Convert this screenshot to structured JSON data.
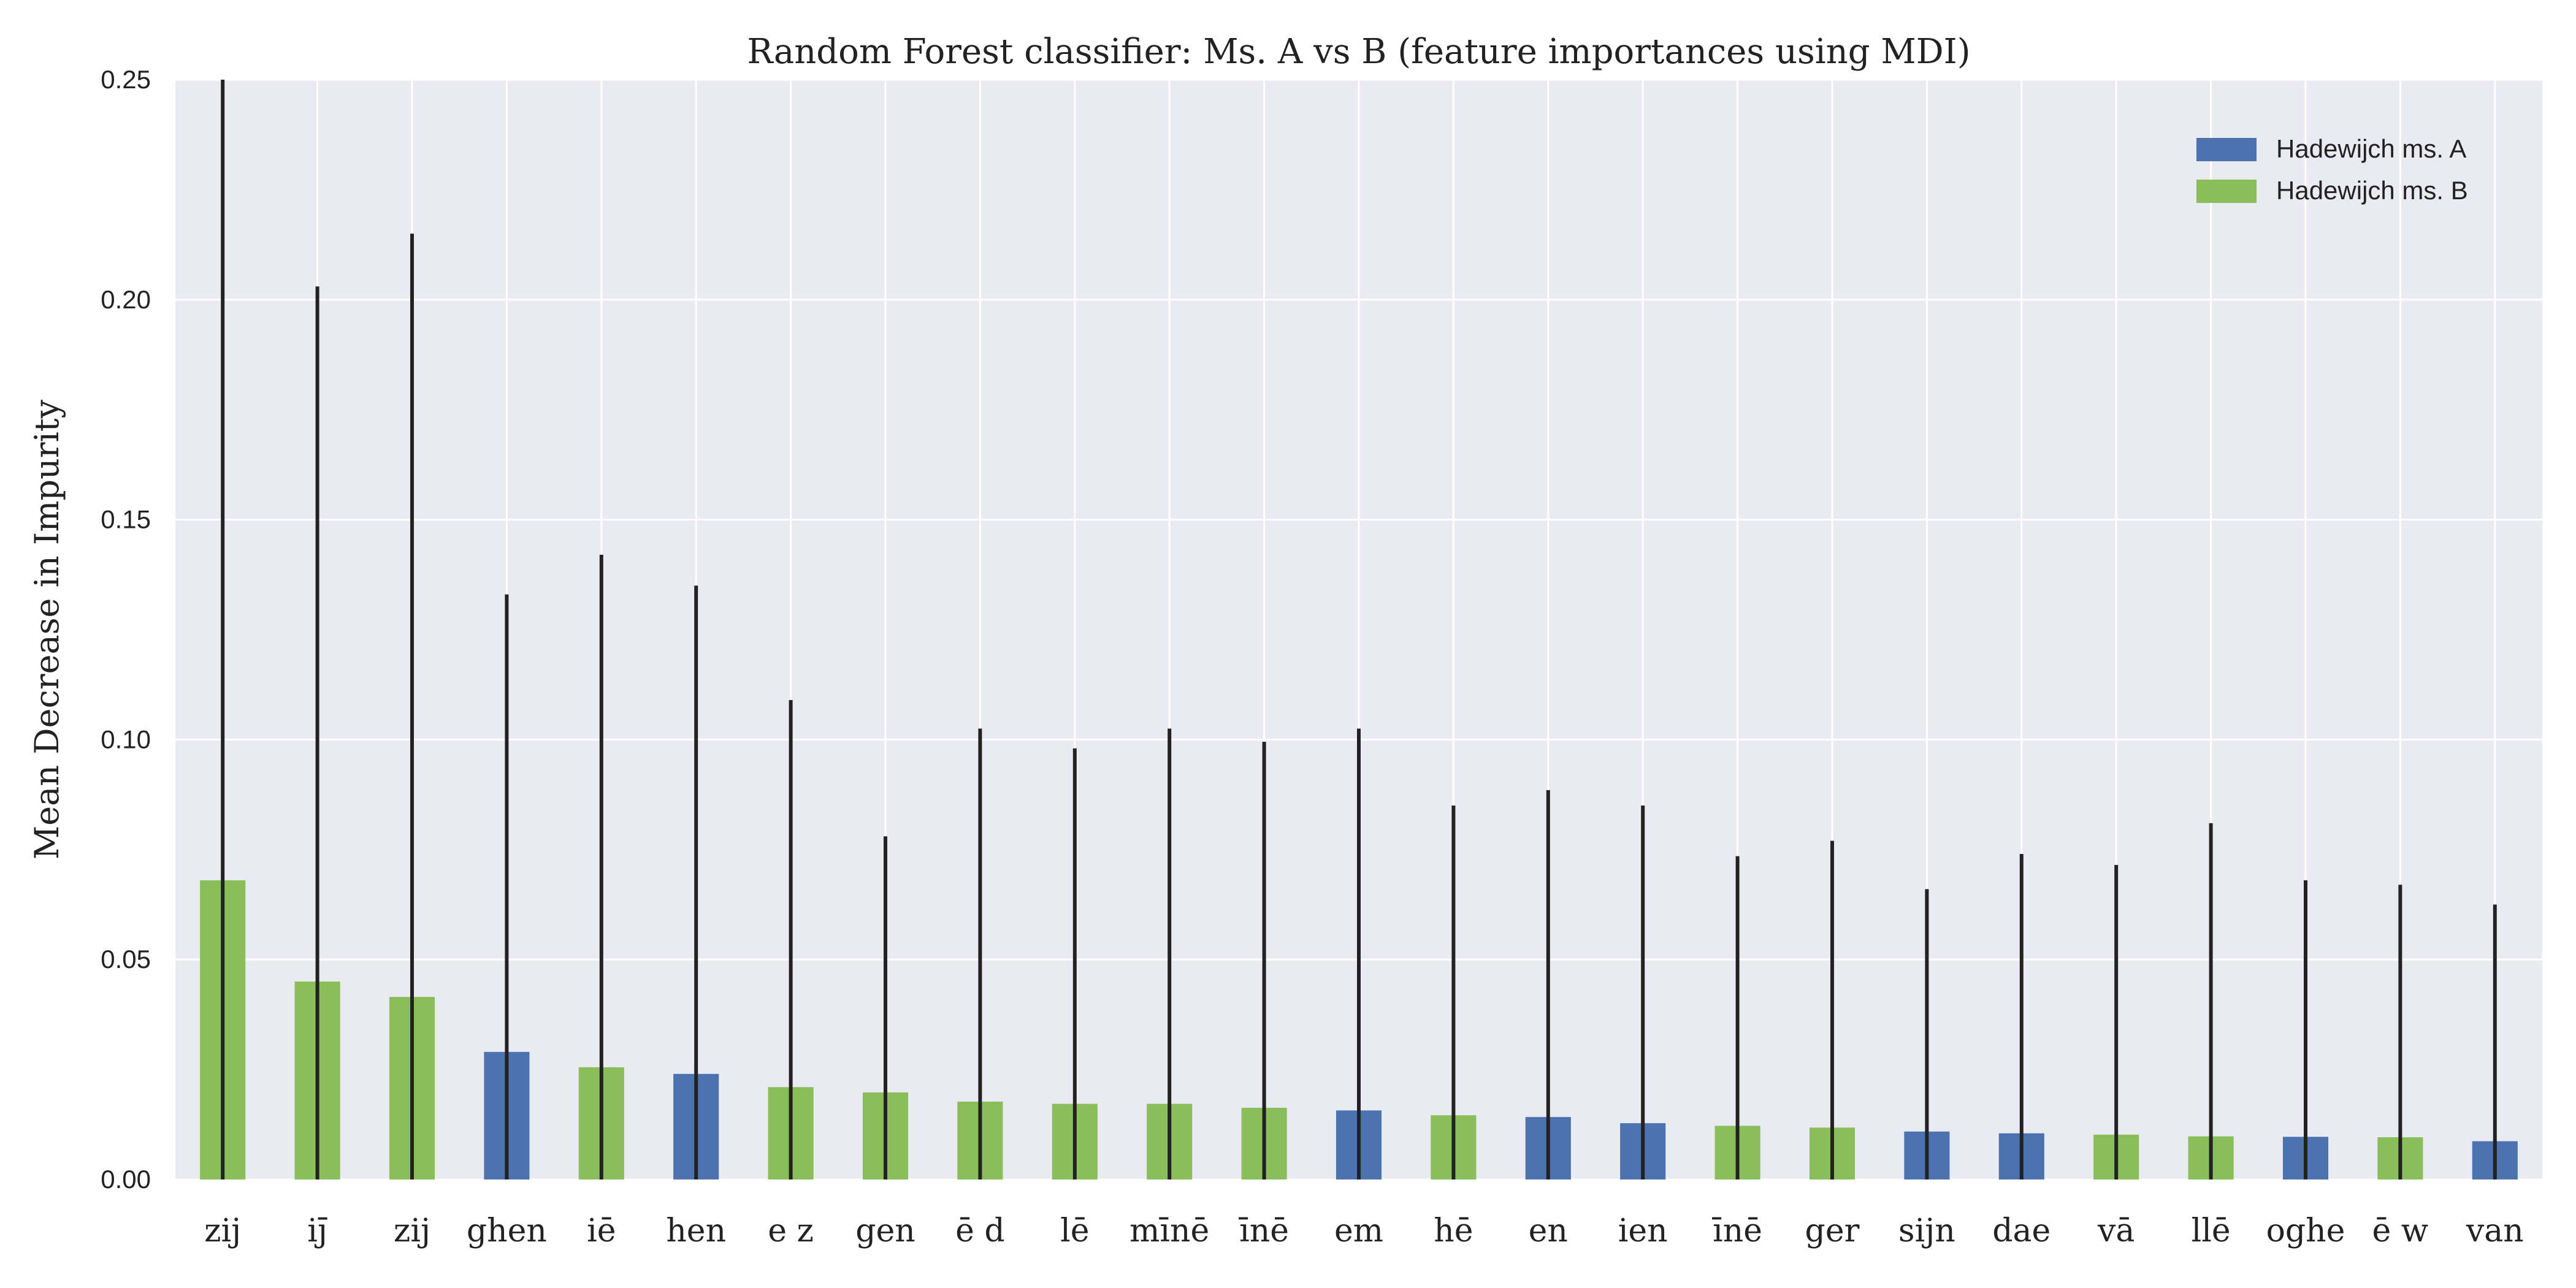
{
  "chart_data": {
    "type": "bar",
    "title": "Random Forest classifier: Ms. A vs B (feature importances using MDI)",
    "xlabel": "",
    "ylabel": "Mean Decrease in Impurity",
    "ylim": [
      0,
      0.25
    ],
    "yticks": [
      "0.00",
      "0.05",
      "0.10",
      "0.15",
      "0.20",
      "0.25"
    ],
    "grid": true,
    "legend_position": "top-right",
    "colors": {
      "A": "#4C72B0",
      "B": "#8ABE5A",
      "background": "#EAEAF2",
      "error": "#222222"
    },
    "legend": [
      {
        "key": "A",
        "label": "Hadewijch ms. A"
      },
      {
        "key": "B",
        "label": "Hadewijch ms. B"
      }
    ],
    "categories": [
      "zij",
      "ij̄",
      "zij",
      "ghen",
      "iē",
      "hen",
      "e z",
      "gen",
      "ē d",
      "lē",
      "mīnē",
      "īnē",
      "em",
      "hē",
      "en",
      "ien",
      "īnē",
      "ger",
      "sijn",
      "dae",
      "vā",
      "llē",
      "oghe",
      "ē w",
      "van"
    ],
    "values": [
      0.068,
      0.045,
      0.0415,
      0.029,
      0.0255,
      0.024,
      0.021,
      0.0198,
      0.0177,
      0.0172,
      0.0172,
      0.0163,
      0.0157,
      0.0146,
      0.0142,
      0.0128,
      0.0122,
      0.0118,
      0.0109,
      0.0105,
      0.0102,
      0.0098,
      0.0097,
      0.0096,
      0.0087
    ],
    "errors": [
      0.25,
      0.203,
      0.215,
      0.133,
      0.142,
      0.135,
      0.109,
      0.078,
      0.1025,
      0.098,
      0.1025,
      0.0995,
      0.1025,
      0.085,
      0.0885,
      0.085,
      0.0735,
      0.077,
      0.066,
      0.074,
      0.0715,
      0.081,
      0.068,
      0.067,
      0.0625
    ],
    "manuscript": [
      "B",
      "B",
      "B",
      "A",
      "B",
      "A",
      "B",
      "B",
      "B",
      "B",
      "B",
      "B",
      "A",
      "B",
      "A",
      "A",
      "B",
      "B",
      "A",
      "A",
      "B",
      "B",
      "A",
      "B",
      "A"
    ]
  }
}
